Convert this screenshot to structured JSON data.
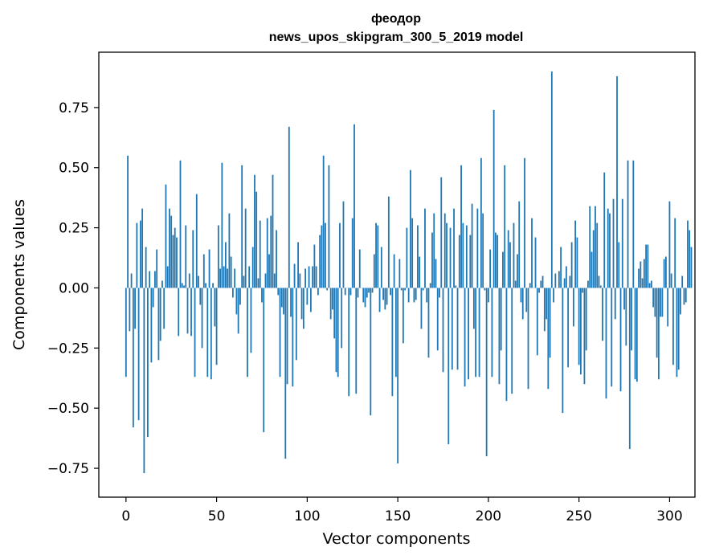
{
  "chart_data": {
    "type": "bar",
    "title": "феодор",
    "subtitle": "news_upos_skipgram_300_5_2019 model",
    "xlabel": "Vector components",
    "ylabel": "Components values",
    "xlim": [
      -15,
      314
    ],
    "ylim": [
      -0.87,
      0.98
    ],
    "xticks": [
      0,
      50,
      100,
      150,
      200,
      250,
      300
    ],
    "yticks": [
      -0.75,
      -0.5,
      -0.25,
      0,
      0.25,
      0.5,
      0.75
    ],
    "xtick_labels": [
      "0",
      "50",
      "100",
      "150",
      "200",
      "250",
      "300"
    ],
    "ytick_labels": [
      "−0.75",
      "−0.50",
      "−0.25",
      "0.00",
      "0.25",
      "0.50",
      "0.75"
    ],
    "bar_color": "#1f77b4",
    "grid": false,
    "values": [
      -0.37,
      0.55,
      -0.18,
      0.06,
      -0.58,
      -0.17,
      0.27,
      -0.55,
      0.28,
      0.33,
      -0.77,
      0.17,
      -0.62,
      0.07,
      -0.31,
      -0.08,
      0.07,
      0.16,
      -0.3,
      -0.22,
      0.03,
      -0.17,
      0.43,
      0.09,
      0.33,
      0.3,
      0.22,
      0.25,
      0.21,
      -0.2,
      0.53,
      0.02,
      0.01,
      0.26,
      -0.19,
      0.06,
      -0.2,
      0.24,
      -0.37,
      0.39,
      0.05,
      -0.07,
      -0.25,
      0.14,
      0.02,
      -0.37,
      0.16,
      -0.38,
      0.02,
      -0.16,
      -0.32,
      0.26,
      0.08,
      0.52,
      0.09,
      0.19,
      0.08,
      0.31,
      0.13,
      -0.04,
      0.08,
      -0.11,
      -0.19,
      -0.07,
      0.51,
      0.05,
      0.33,
      -0.37,
      0.09,
      -0.27,
      0.17,
      0.47,
      0.4,
      0.04,
      0.28,
      -0.06,
      -0.6,
      0.06,
      0.29,
      0.14,
      0.3,
      0.47,
      0.06,
      0.24,
      -0.03,
      -0.37,
      -0.08,
      -0.11,
      -0.71,
      -0.4,
      0.67,
      -0.12,
      -0.41,
      0.1,
      -0.3,
      0.19,
      0.06,
      -0.13,
      -0.17,
      0.08,
      -0.07,
      0.09,
      -0.1,
      0.09,
      0.18,
      0.09,
      -0.03,
      0.22,
      0.26,
      0.55,
      0.27,
      -0.01,
      0.51,
      -0.13,
      -0.09,
      -0.21,
      -0.35,
      -0.37,
      0.27,
      -0.25,
      0.36,
      -0.03,
      0.0,
      -0.45,
      -0.03,
      0.29,
      0.68,
      -0.44,
      -0.04,
      0.16,
      0.0,
      -0.06,
      -0.08,
      -0.04,
      -0.02,
      -0.53,
      -0.02,
      0.14,
      0.27,
      0.26,
      -0.1,
      0.17,
      -0.05,
      -0.09,
      -0.07,
      0.38,
      -0.03,
      -0.45,
      0.14,
      -0.37,
      -0.73,
      0.12,
      -0.01,
      -0.23,
      -0.01,
      0.25,
      -0.06,
      0.49,
      0.29,
      -0.06,
      -0.05,
      0.26,
      0.13,
      -0.17,
      -0.01,
      0.33,
      -0.06,
      -0.29,
      0.02,
      0.23,
      0.31,
      0.12,
      -0.26,
      -0.04,
      0.46,
      -0.35,
      0.31,
      0.27,
      -0.65,
      0.25,
      -0.34,
      0.33,
      0.01,
      -0.34,
      0.22,
      0.51,
      0.27,
      -0.41,
      0.26,
      -0.38,
      0.22,
      0.35,
      -0.17,
      -0.37,
      0.33,
      -0.37,
      0.54,
      0.31,
      -0.01,
      -0.7,
      -0.06,
      0.16,
      -0.37,
      0.74,
      0.23,
      0.22,
      -0.4,
      -0.26,
      0.15,
      0.51,
      -0.47,
      0.24,
      0.19,
      -0.44,
      0.27,
      0.03,
      0.14,
      0.36,
      -0.06,
      -0.13,
      0.54,
      -0.1,
      -0.42,
      0.02,
      0.29,
      0.0,
      0.21,
      -0.28,
      -0.02,
      0.03,
      0.05,
      -0.18,
      -0.13,
      -0.42,
      -0.29,
      0.9,
      -0.06,
      0.06,
      0.0,
      0.07,
      0.17,
      -0.52,
      0.04,
      0.09,
      -0.33,
      0.05,
      0.19,
      -0.16,
      0.28,
      0.21,
      -0.32,
      -0.36,
      -0.02,
      -0.4,
      -0.26,
      0.03,
      0.34,
      0.15,
      0.24,
      0.34,
      0.27,
      0.05,
      0.01,
      -0.22,
      0.48,
      -0.46,
      0.33,
      0.31,
      -0.41,
      0.37,
      -0.13,
      0.88,
      0.19,
      -0.43,
      0.37,
      -0.09,
      -0.24,
      0.53,
      -0.67,
      -0.26,
      0.53,
      -0.38,
      -0.39,
      0.08,
      0.11,
      0.04,
      0.12,
      0.18,
      0.18,
      0.02,
      0.03,
      -0.08,
      -0.12,
      -0.29,
      -0.38,
      -0.12,
      -0.12,
      0.12,
      0.13,
      -0.16,
      0.36,
      0.06,
      -0.32,
      0.29,
      -0.37,
      -0.34,
      -0.11,
      0.05,
      -0.07,
      -0.06,
      0.28,
      0.24,
      0.17
    ]
  }
}
